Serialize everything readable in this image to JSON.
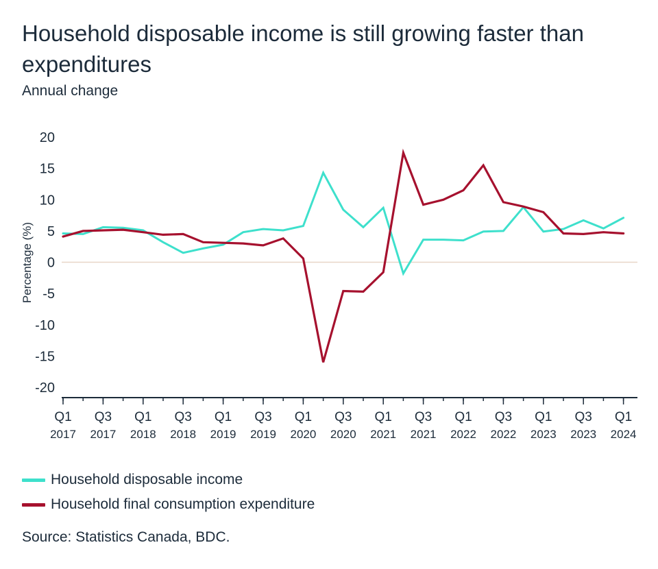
{
  "title": "Household disposable income is still growing faster than expenditures",
  "subtitle": "Annual change",
  "source": "Source: Statistics Canada, BDC.",
  "colors": {
    "income": "#3ee0cc",
    "expenditure": "#a6112e",
    "axis": "#1c2b3a",
    "zero_line": "#e8d6c8"
  },
  "chart_data": {
    "type": "line",
    "title": "Household disposable income is still growing faster than expenditures",
    "subtitle": "Annual change",
    "xlabel": "",
    "ylabel": "Percentage (%)",
    "ylim": [
      -20,
      20
    ],
    "yticks": [
      "20",
      "15",
      "10",
      "5",
      "0",
      "-5",
      "-10",
      "-15",
      "-20"
    ],
    "grid": false,
    "legend_position": "bottom-left",
    "x": [
      "Q1 2017",
      "Q2 2017",
      "Q3 2017",
      "Q4 2017",
      "Q1 2018",
      "Q2 2018",
      "Q3 2018",
      "Q4 2018",
      "Q1 2019",
      "Q2 2019",
      "Q3 2019",
      "Q4 2019",
      "Q1 2020",
      "Q2 2020",
      "Q3 2020",
      "Q4 2020",
      "Q1 2021",
      "Q2 2021",
      "Q3 2021",
      "Q4 2021",
      "Q1 2022",
      "Q2 2022",
      "Q3 2022",
      "Q4 2022",
      "Q1 2023",
      "Q2 2023",
      "Q3 2023",
      "Q4 2023",
      "Q1 2024"
    ],
    "xtick_labels": [
      {
        "q": "Q1",
        "year": "2017"
      },
      {
        "q": "Q3",
        "year": "2017"
      },
      {
        "q": "Q1",
        "year": "2018"
      },
      {
        "q": "Q3",
        "year": "2018"
      },
      {
        "q": "Q1",
        "year": "2019"
      },
      {
        "q": "Q3",
        "year": "2019"
      },
      {
        "q": "Q1",
        "year": "2020"
      },
      {
        "q": "Q3",
        "year": "2020"
      },
      {
        "q": "Q1",
        "year": "2021"
      },
      {
        "q": "Q3",
        "year": "2021"
      },
      {
        "q": "Q1",
        "year": "2022"
      },
      {
        "q": "Q3",
        "year": "2022"
      },
      {
        "q": "Q1",
        "year": "2023"
      },
      {
        "q": "Q3",
        "year": "2023"
      },
      {
        "q": "Q1",
        "year": "2024"
      }
    ],
    "series": [
      {
        "name": "Household disposable income",
        "color": "#3ee0cc",
        "values": [
          4.6,
          4.5,
          5.6,
          5.5,
          5.1,
          3.2,
          1.5,
          2.2,
          2.8,
          4.8,
          5.3,
          5.1,
          5.8,
          14.3,
          8.4,
          5.6,
          8.7,
          -1.8,
          3.6,
          3.6,
          3.5,
          4.9,
          5.0,
          8.8,
          4.9,
          5.3,
          6.7,
          5.4,
          7.1
        ]
      },
      {
        "name": "Household final consumption expenditure",
        "color": "#a6112e",
        "values": [
          4.1,
          5.0,
          5.1,
          5.2,
          4.8,
          4.4,
          4.5,
          3.2,
          3.1,
          3.0,
          2.7,
          3.8,
          0.6,
          -16.0,
          -4.6,
          -4.7,
          -1.6,
          17.5,
          9.2,
          10.0,
          11.5,
          15.5,
          9.6,
          8.9,
          8.0,
          4.6,
          4.5,
          4.8,
          4.6
        ]
      }
    ]
  }
}
